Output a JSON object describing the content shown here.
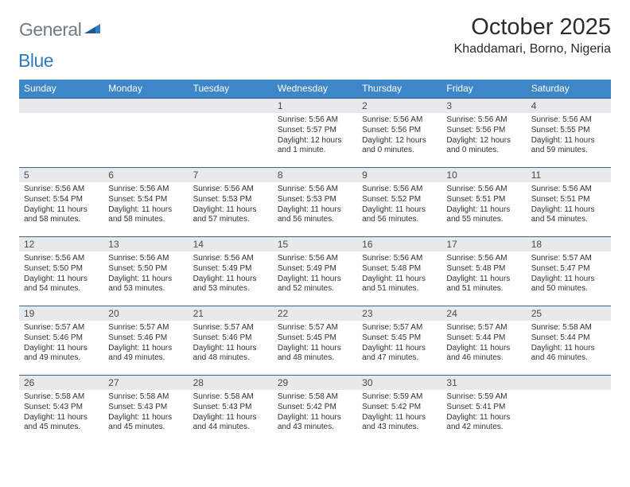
{
  "logo": {
    "text1": "General",
    "text2": "Blue"
  },
  "title": "October 2025",
  "subtitle": "Khaddamari, Borno, Nigeria",
  "colors": {
    "header_bg": "#3d87c9",
    "header_text": "#ffffff",
    "band_bg": "#e7e9eb",
    "rule": "#36648b",
    "logo_gray": "#6f7b85",
    "logo_blue": "#2f7bc4"
  },
  "day_headers": [
    "Sunday",
    "Monday",
    "Tuesday",
    "Wednesday",
    "Thursday",
    "Friday",
    "Saturday"
  ],
  "weeks": [
    [
      {
        "n": "",
        "sr": "",
        "ss": "",
        "dl": ""
      },
      {
        "n": "",
        "sr": "",
        "ss": "",
        "dl": ""
      },
      {
        "n": "",
        "sr": "",
        "ss": "",
        "dl": ""
      },
      {
        "n": "1",
        "sr": "Sunrise: 5:56 AM",
        "ss": "Sunset: 5:57 PM",
        "dl": "Daylight: 12 hours and 1 minute."
      },
      {
        "n": "2",
        "sr": "Sunrise: 5:56 AM",
        "ss": "Sunset: 5:56 PM",
        "dl": "Daylight: 12 hours and 0 minutes."
      },
      {
        "n": "3",
        "sr": "Sunrise: 5:56 AM",
        "ss": "Sunset: 5:56 PM",
        "dl": "Daylight: 12 hours and 0 minutes."
      },
      {
        "n": "4",
        "sr": "Sunrise: 5:56 AM",
        "ss": "Sunset: 5:55 PM",
        "dl": "Daylight: 11 hours and 59 minutes."
      }
    ],
    [
      {
        "n": "5",
        "sr": "Sunrise: 5:56 AM",
        "ss": "Sunset: 5:54 PM",
        "dl": "Daylight: 11 hours and 58 minutes."
      },
      {
        "n": "6",
        "sr": "Sunrise: 5:56 AM",
        "ss": "Sunset: 5:54 PM",
        "dl": "Daylight: 11 hours and 58 minutes."
      },
      {
        "n": "7",
        "sr": "Sunrise: 5:56 AM",
        "ss": "Sunset: 5:53 PM",
        "dl": "Daylight: 11 hours and 57 minutes."
      },
      {
        "n": "8",
        "sr": "Sunrise: 5:56 AM",
        "ss": "Sunset: 5:53 PM",
        "dl": "Daylight: 11 hours and 56 minutes."
      },
      {
        "n": "9",
        "sr": "Sunrise: 5:56 AM",
        "ss": "Sunset: 5:52 PM",
        "dl": "Daylight: 11 hours and 56 minutes."
      },
      {
        "n": "10",
        "sr": "Sunrise: 5:56 AM",
        "ss": "Sunset: 5:51 PM",
        "dl": "Daylight: 11 hours and 55 minutes."
      },
      {
        "n": "11",
        "sr": "Sunrise: 5:56 AM",
        "ss": "Sunset: 5:51 PM",
        "dl": "Daylight: 11 hours and 54 minutes."
      }
    ],
    [
      {
        "n": "12",
        "sr": "Sunrise: 5:56 AM",
        "ss": "Sunset: 5:50 PM",
        "dl": "Daylight: 11 hours and 54 minutes."
      },
      {
        "n": "13",
        "sr": "Sunrise: 5:56 AM",
        "ss": "Sunset: 5:50 PM",
        "dl": "Daylight: 11 hours and 53 minutes."
      },
      {
        "n": "14",
        "sr": "Sunrise: 5:56 AM",
        "ss": "Sunset: 5:49 PM",
        "dl": "Daylight: 11 hours and 53 minutes."
      },
      {
        "n": "15",
        "sr": "Sunrise: 5:56 AM",
        "ss": "Sunset: 5:49 PM",
        "dl": "Daylight: 11 hours and 52 minutes."
      },
      {
        "n": "16",
        "sr": "Sunrise: 5:56 AM",
        "ss": "Sunset: 5:48 PM",
        "dl": "Daylight: 11 hours and 51 minutes."
      },
      {
        "n": "17",
        "sr": "Sunrise: 5:56 AM",
        "ss": "Sunset: 5:48 PM",
        "dl": "Daylight: 11 hours and 51 minutes."
      },
      {
        "n": "18",
        "sr": "Sunrise: 5:57 AM",
        "ss": "Sunset: 5:47 PM",
        "dl": "Daylight: 11 hours and 50 minutes."
      }
    ],
    [
      {
        "n": "19",
        "sr": "Sunrise: 5:57 AM",
        "ss": "Sunset: 5:46 PM",
        "dl": "Daylight: 11 hours and 49 minutes."
      },
      {
        "n": "20",
        "sr": "Sunrise: 5:57 AM",
        "ss": "Sunset: 5:46 PM",
        "dl": "Daylight: 11 hours and 49 minutes."
      },
      {
        "n": "21",
        "sr": "Sunrise: 5:57 AM",
        "ss": "Sunset: 5:46 PM",
        "dl": "Daylight: 11 hours and 48 minutes."
      },
      {
        "n": "22",
        "sr": "Sunrise: 5:57 AM",
        "ss": "Sunset: 5:45 PM",
        "dl": "Daylight: 11 hours and 48 minutes."
      },
      {
        "n": "23",
        "sr": "Sunrise: 5:57 AM",
        "ss": "Sunset: 5:45 PM",
        "dl": "Daylight: 11 hours and 47 minutes."
      },
      {
        "n": "24",
        "sr": "Sunrise: 5:57 AM",
        "ss": "Sunset: 5:44 PM",
        "dl": "Daylight: 11 hours and 46 minutes."
      },
      {
        "n": "25",
        "sr": "Sunrise: 5:58 AM",
        "ss": "Sunset: 5:44 PM",
        "dl": "Daylight: 11 hours and 46 minutes."
      }
    ],
    [
      {
        "n": "26",
        "sr": "Sunrise: 5:58 AM",
        "ss": "Sunset: 5:43 PM",
        "dl": "Daylight: 11 hours and 45 minutes."
      },
      {
        "n": "27",
        "sr": "Sunrise: 5:58 AM",
        "ss": "Sunset: 5:43 PM",
        "dl": "Daylight: 11 hours and 45 minutes."
      },
      {
        "n": "28",
        "sr": "Sunrise: 5:58 AM",
        "ss": "Sunset: 5:43 PM",
        "dl": "Daylight: 11 hours and 44 minutes."
      },
      {
        "n": "29",
        "sr": "Sunrise: 5:58 AM",
        "ss": "Sunset: 5:42 PM",
        "dl": "Daylight: 11 hours and 43 minutes."
      },
      {
        "n": "30",
        "sr": "Sunrise: 5:59 AM",
        "ss": "Sunset: 5:42 PM",
        "dl": "Daylight: 11 hours and 43 minutes."
      },
      {
        "n": "31",
        "sr": "Sunrise: 5:59 AM",
        "ss": "Sunset: 5:41 PM",
        "dl": "Daylight: 11 hours and 42 minutes."
      },
      {
        "n": "",
        "sr": "",
        "ss": "",
        "dl": ""
      }
    ]
  ]
}
